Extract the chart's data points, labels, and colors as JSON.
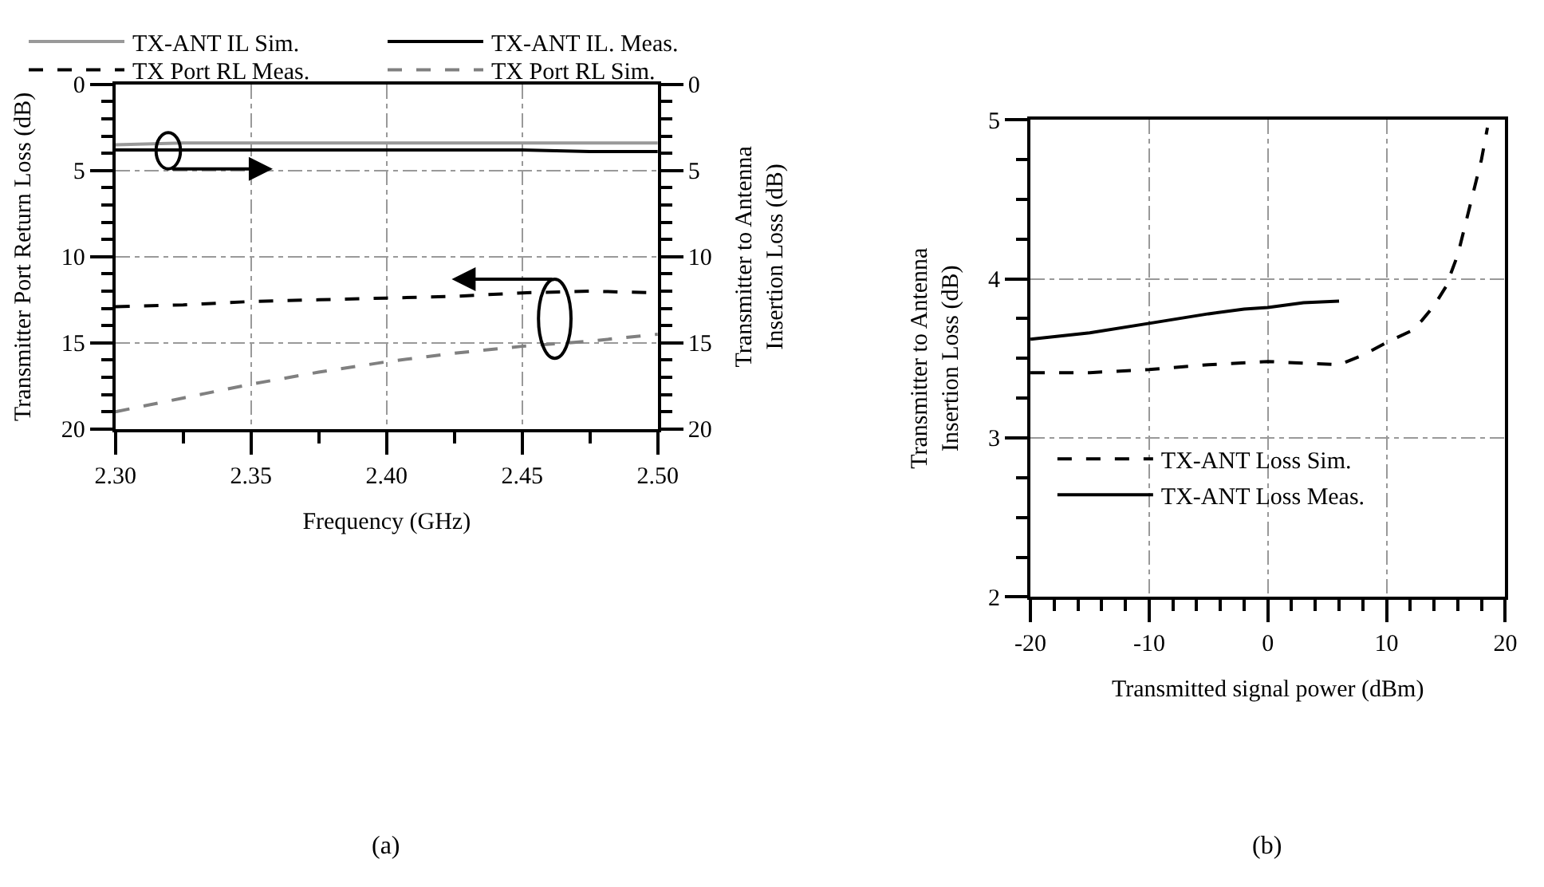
{
  "chart_data": [
    {
      "type": "line",
      "xlabel": "Frequency (GHz)",
      "ylabel": "Transmitter Port Return Loss (dB)",
      "y2label": "Transmitter to Antenna\nInsertion Loss (dB)",
      "annotations": [
        "(a)"
      ],
      "x": [
        2.3,
        2.325,
        2.35,
        2.375,
        2.4,
        2.425,
        2.45,
        2.475,
        2.5
      ],
      "series": [
        {
          "name": "TX-ANT IL Sim.",
          "color": "#999999",
          "line_style": "solid",
          "axis": "y2",
          "values": [
            3.5,
            3.4,
            3.4,
            3.4,
            3.4,
            3.4,
            3.4,
            3.4,
            3.4
          ]
        },
        {
          "name": "TX-ANT IL. Meas.",
          "color": "#000000",
          "line_style": "solid",
          "axis": "y2",
          "values": [
            3.8,
            3.8,
            3.8,
            3.8,
            3.8,
            3.8,
            3.8,
            3.9,
            3.9
          ]
        },
        {
          "name": "TX Port RL Meas.",
          "color": "#000000",
          "line_style": "dashed",
          "values": [
            12.9,
            12.8,
            12.6,
            12.5,
            12.4,
            12.3,
            12.1,
            12.0,
            12.1
          ]
        },
        {
          "name": "TX Port RL Sim.",
          "color": "#808080",
          "line_style": "dashed",
          "values": [
            19.0,
            18.2,
            17.4,
            16.7,
            16.1,
            15.6,
            15.2,
            14.9,
            14.5
          ]
        }
      ],
      "xlim": [
        2.3,
        2.5
      ],
      "xticks": [
        {
          "value": 2.3,
          "label": "2.30"
        },
        {
          "value": 2.325,
          "label": null
        },
        {
          "value": 2.35,
          "label": "2.35"
        },
        {
          "value": 2.375,
          "label": null
        },
        {
          "value": 2.4,
          "label": "2.40"
        },
        {
          "value": 2.425,
          "label": null
        },
        {
          "value": 2.45,
          "label": "2.45"
        },
        {
          "value": 2.475,
          "label": null
        },
        {
          "value": 2.5,
          "label": "2.50"
        }
      ],
      "ylim": [
        20,
        0
      ],
      "yticks": [
        0,
        {
          "value": 1,
          "label": null
        },
        {
          "value": 2,
          "label": null
        },
        {
          "value": 3,
          "label": null
        },
        {
          "value": 4,
          "label": null
        },
        5,
        {
          "value": 6,
          "label": null
        },
        {
          "value": 7,
          "label": null
        },
        {
          "value": 8,
          "label": null
        },
        {
          "value": 9,
          "label": null
        },
        10,
        {
          "value": 11,
          "label": null
        },
        {
          "value": 12,
          "label": null
        },
        {
          "value": 13,
          "label": null
        },
        {
          "value": 14,
          "label": null
        },
        15,
        {
          "value": 16,
          "label": null
        },
        {
          "value": 17,
          "label": null
        },
        {
          "value": 18,
          "label": null
        },
        {
          "value": 19,
          "label": null
        },
        20
      ],
      "y2lim": [
        20,
        0
      ],
      "y2ticks": [
        0,
        {
          "value": 1,
          "label": null
        },
        {
          "value": 2,
          "label": null
        },
        {
          "value": 3,
          "label": null
        },
        {
          "value": 4,
          "label": null
        },
        5,
        {
          "value": 6,
          "label": null
        },
        {
          "value": 7,
          "label": null
        },
        {
          "value": 8,
          "label": null
        },
        {
          "value": 9,
          "label": null
        },
        10,
        {
          "value": 11,
          "label": null
        },
        {
          "value": 12,
          "label": null
        },
        {
          "value": 13,
          "label": null
        },
        {
          "value": 14,
          "label": null
        },
        15,
        {
          "value": 16,
          "label": null
        },
        {
          "value": 17,
          "label": null
        },
        {
          "value": 18,
          "label": null
        },
        {
          "value": 19,
          "label": null
        },
        20
      ],
      "grid": true,
      "legend": "top",
      "marker": "none"
    },
    {
      "type": "line",
      "xlabel": "Transmitted signal power (dBm)",
      "ylabel": "Transmitter to Antenna\nInsertion Loss (dB)",
      "annotations": [
        "(b)"
      ],
      "series": [
        {
          "name": "TX-ANT Loss Sim.",
          "color": "#000000",
          "line_style": "dashed",
          "x": [
            -20,
            -15,
            -10,
            -5,
            0,
            3,
            6,
            8,
            10,
            12,
            13,
            14,
            15,
            16,
            17,
            18,
            18.5
          ],
          "values": [
            3.41,
            3.41,
            3.43,
            3.46,
            3.48,
            3.47,
            3.46,
            3.52,
            3.6,
            3.67,
            3.74,
            3.83,
            3.95,
            4.15,
            4.45,
            4.75,
            4.95
          ]
        },
        {
          "name": "TX-ANT Loss Meas.",
          "color": "#000000",
          "line_style": "solid",
          "x": [
            -20,
            -15,
            -10,
            -5,
            -2,
            0,
            3,
            6
          ],
          "values": [
            3.62,
            3.66,
            3.72,
            3.78,
            3.81,
            3.82,
            3.85,
            3.86
          ]
        }
      ],
      "xlim": [
        -20,
        20
      ],
      "xticks": [
        -20,
        {
          "value": -18,
          "label": null
        },
        {
          "value": -16,
          "label": null
        },
        {
          "value": -14,
          "label": null
        },
        {
          "value": -12,
          "label": null
        },
        -10,
        {
          "value": -8,
          "label": null
        },
        {
          "value": -6,
          "label": null
        },
        {
          "value": -4,
          "label": null
        },
        {
          "value": -2,
          "label": null
        },
        0,
        {
          "value": 2,
          "label": null
        },
        {
          "value": 4,
          "label": null
        },
        {
          "value": 6,
          "label": null
        },
        {
          "value": 8,
          "label": null
        },
        10,
        {
          "value": 12,
          "label": null
        },
        {
          "value": 14,
          "label": null
        },
        {
          "value": 16,
          "label": null
        },
        {
          "value": 18,
          "label": null
        },
        20
      ],
      "ylim": [
        2,
        5
      ],
      "yticks": [
        2,
        {
          "value": 2.25,
          "label": null
        },
        {
          "value": 2.5,
          "label": null
        },
        {
          "value": 2.75,
          "label": null
        },
        3,
        {
          "value": 3.25,
          "label": null
        },
        {
          "value": 3.5,
          "label": null
        },
        {
          "value": 3.75,
          "label": null
        },
        4,
        {
          "value": 4.25,
          "label": null
        },
        {
          "value": 4.5,
          "label": null
        },
        {
          "value": 4.75,
          "label": null
        },
        5
      ],
      "grid": true,
      "legend": "bottom left",
      "marker": "none"
    }
  ]
}
